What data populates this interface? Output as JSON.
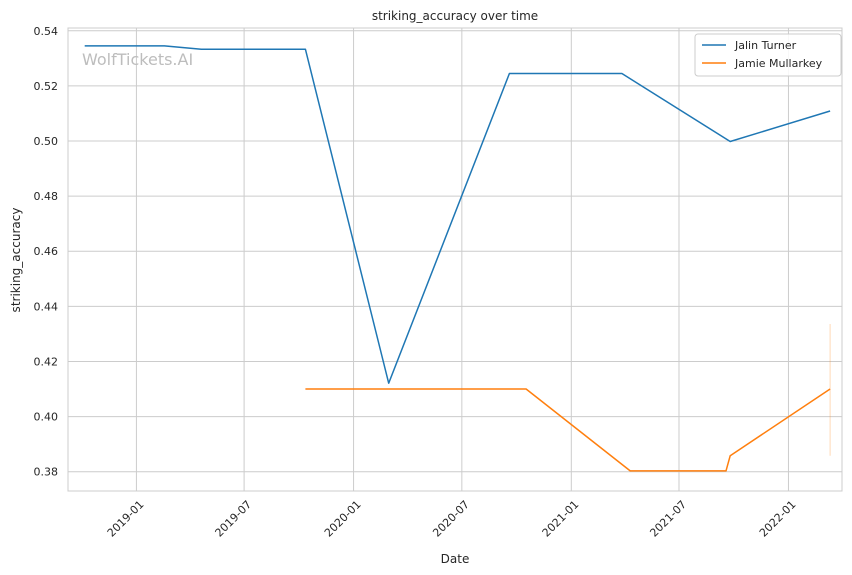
{
  "chart_data": {
    "type": "line",
    "title": "striking_accuracy over time",
    "xlabel": "Date",
    "ylabel": "striking_accuracy",
    "watermark": "WolfTickets.AI",
    "x_type": "date",
    "xlim": [
      "2018-09-08",
      "2022-04-01"
    ],
    "ylim": [
      0.373,
      0.541
    ],
    "x_ticks": [
      "2019-01",
      "2019-07",
      "2020-01",
      "2020-07",
      "2021-01",
      "2021-07",
      "2022-01"
    ],
    "y_ticks": [
      0.38,
      0.4,
      0.42,
      0.44,
      0.46,
      0.48,
      0.5,
      0.52,
      0.54
    ],
    "y_tick_labels": [
      "0.38",
      "0.40",
      "0.42",
      "0.44",
      "0.46",
      "0.48",
      "0.50",
      "0.52",
      "0.54"
    ],
    "grid": true,
    "legend_position": "top-right",
    "series": [
      {
        "name": "Jalin Turner",
        "color": "#1f77b4",
        "points": [
          {
            "x": "2018-10-06",
            "y": 0.5345
          },
          {
            "x": "2019-02-17",
            "y": 0.5345
          },
          {
            "x": "2019-04-20",
            "y": 0.5333
          },
          {
            "x": "2019-10-12",
            "y": 0.5333
          },
          {
            "x": "2020-02-29",
            "y": 0.4121
          },
          {
            "x": "2020-09-19",
            "y": 0.5245
          },
          {
            "x": "2021-03-27",
            "y": 0.5245
          },
          {
            "x": "2021-09-25",
            "y": 0.4998
          },
          {
            "x": "2022-03-12",
            "y": 0.5109
          }
        ]
      },
      {
        "name": "Jamie Mullarkey",
        "color": "#ff7f0e",
        "points": [
          {
            "x": "2019-10-12",
            "y": 0.41
          },
          {
            "x": "2020-10-17",
            "y": 0.41
          },
          {
            "x": "2021-04-10",
            "y": 0.3803
          },
          {
            "x": "2021-09-18",
            "y": 0.3803
          },
          {
            "x": "2021-09-25",
            "y": 0.3858
          },
          {
            "x": "2022-03-12",
            "y": 0.41
          }
        ]
      }
    ],
    "error_bar": {
      "x": "2022-03-12",
      "y_low": 0.3858,
      "y_high": 0.4336,
      "color": "#ff7f0e"
    }
  }
}
